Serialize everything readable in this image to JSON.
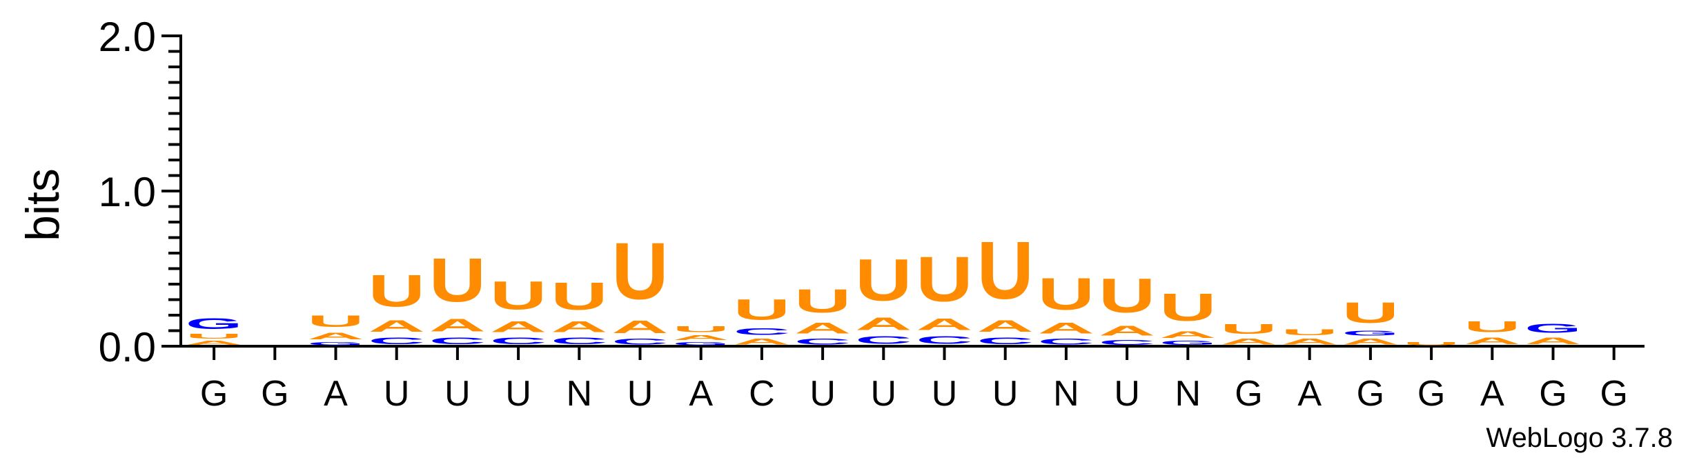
{
  "chart_data": {
    "type": "sequence-logo",
    "ylabel": "bits",
    "ylim": [
      0,
      2.0
    ],
    "yticks": [
      {
        "value": 2.0,
        "label": "2.0"
      },
      {
        "value": 1.0,
        "label": "1.0"
      },
      {
        "value": 0.0,
        "label": "0.0"
      }
    ],
    "x_labels": [
      "G",
      "G",
      "A",
      "U",
      "U",
      "U",
      "N",
      "U",
      "A",
      "C",
      "U",
      "U",
      "U",
      "U",
      "N",
      "U",
      "N",
      "G",
      "A",
      "G",
      "G",
      "A",
      "G",
      "G"
    ],
    "colors": {
      "A": "#ff8c00",
      "U": "#ff8c00",
      "C": "#0000ff",
      "G": "#0000ff"
    },
    "columns": [
      [
        {
          "letter": "A",
          "height": 0.04
        },
        {
          "letter": "U",
          "height": 0.05
        },
        {
          "letter": "G",
          "height": 0.11
        }
      ],
      [],
      [
        {
          "letter": "G",
          "height": 0.03
        },
        {
          "letter": "A",
          "height": 0.07
        },
        {
          "letter": "U",
          "height": 0.12
        }
      ],
      [
        {
          "letter": "C",
          "height": 0.07
        },
        {
          "letter": "A",
          "height": 0.12
        },
        {
          "letter": "U",
          "height": 0.33
        }
      ],
      [
        {
          "letter": "C",
          "height": 0.07
        },
        {
          "letter": "A",
          "height": 0.13
        },
        {
          "letter": "U",
          "height": 0.45
        }
      ],
      [
        {
          "letter": "C",
          "height": 0.07
        },
        {
          "letter": "A",
          "height": 0.11
        },
        {
          "letter": "U",
          "height": 0.29
        }
      ],
      [
        {
          "letter": "C",
          "height": 0.07
        },
        {
          "letter": "A",
          "height": 0.11
        },
        {
          "letter": "U",
          "height": 0.28
        }
      ],
      [
        {
          "letter": "C",
          "height": 0.06
        },
        {
          "letter": "A",
          "height": 0.13
        },
        {
          "letter": "U",
          "height": 0.58
        }
      ],
      [
        {
          "letter": "G",
          "height": 0.03
        },
        {
          "letter": "A",
          "height": 0.05
        },
        {
          "letter": "U",
          "height": 0.06
        }
      ],
      [
        {
          "letter": "A",
          "height": 0.06
        },
        {
          "letter": "C",
          "height": 0.07
        },
        {
          "letter": "U",
          "height": 0.21
        }
      ],
      [
        {
          "letter": "C",
          "height": 0.06
        },
        {
          "letter": "A",
          "height": 0.11
        },
        {
          "letter": "U",
          "height": 0.24
        }
      ],
      [
        {
          "letter": "C",
          "height": 0.08
        },
        {
          "letter": "A",
          "height": 0.13
        },
        {
          "letter": "U",
          "height": 0.43
        }
      ],
      [
        {
          "letter": "C",
          "height": 0.08
        },
        {
          "letter": "A",
          "height": 0.12
        },
        {
          "letter": "U",
          "height": 0.46
        }
      ],
      [
        {
          "letter": "C",
          "height": 0.07
        },
        {
          "letter": "A",
          "height": 0.12
        },
        {
          "letter": "U",
          "height": 0.59
        }
      ],
      [
        {
          "letter": "C",
          "height": 0.06
        },
        {
          "letter": "A",
          "height": 0.11
        },
        {
          "letter": "U",
          "height": 0.33
        }
      ],
      [
        {
          "letter": "C",
          "height": 0.05
        },
        {
          "letter": "A",
          "height": 0.1
        },
        {
          "letter": "U",
          "height": 0.35
        }
      ],
      [
        {
          "letter": "G",
          "height": 0.04
        },
        {
          "letter": "A",
          "height": 0.07
        },
        {
          "letter": "U",
          "height": 0.28
        }
      ],
      [
        {
          "letter": "A",
          "height": 0.06
        },
        {
          "letter": "U",
          "height": 0.1
        }
      ],
      [
        {
          "letter": "A",
          "height": 0.06
        },
        {
          "letter": "U",
          "height": 0.06
        }
      ],
      [
        {
          "letter": "A",
          "height": 0.06
        },
        {
          "letter": "G",
          "height": 0.05
        },
        {
          "letter": "U",
          "height": 0.21
        }
      ],
      [
        {
          "letter": "U",
          "height": 0.03
        }
      ],
      [
        {
          "letter": "A",
          "height": 0.07
        },
        {
          "letter": "U",
          "height": 0.11
        }
      ],
      [
        {
          "letter": "A",
          "height": 0.07
        },
        {
          "letter": "G",
          "height": 0.09
        }
      ],
      []
    ]
  },
  "footer": {
    "credit": "WebLogo 3.7.8"
  }
}
